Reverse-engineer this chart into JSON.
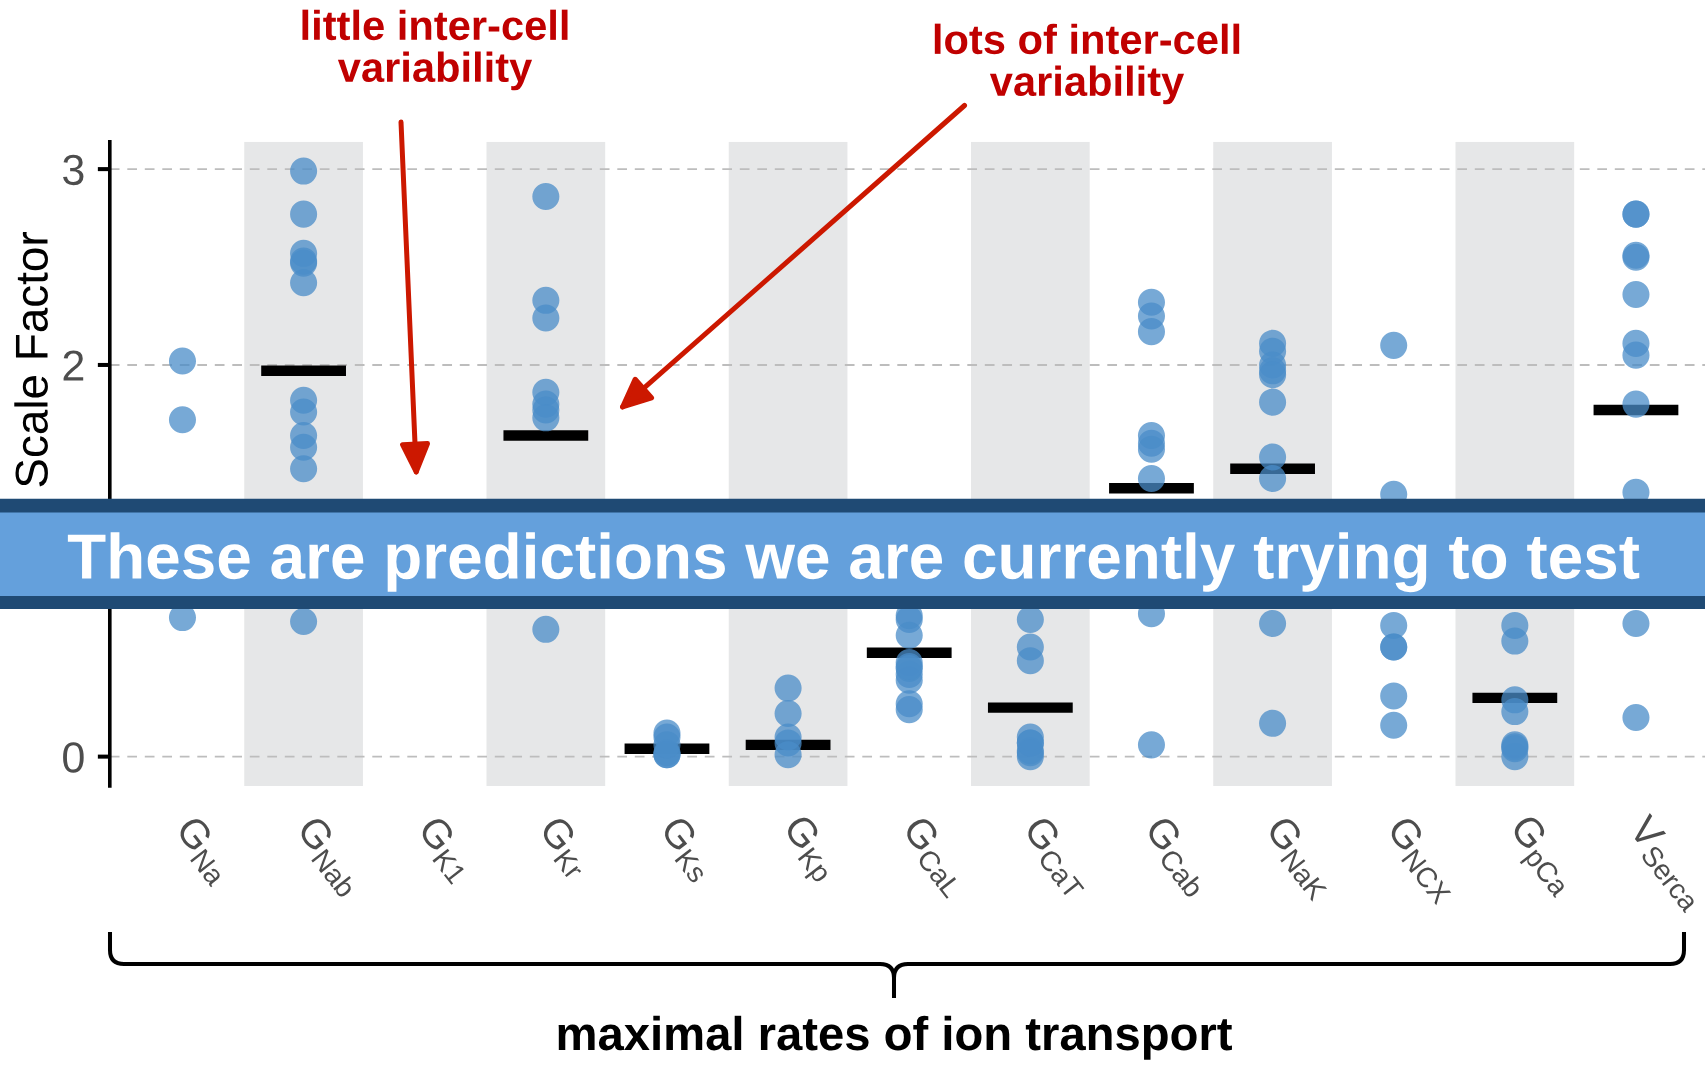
{
  "chart_data": {
    "type": "scatter",
    "xlabel": "maximal rates of ion transport",
    "ylabel": "Scale Factor",
    "categories": [
      "G$_{Na}$",
      "G$_{Nab}$",
      "G$_{K1}$",
      "G$_{Kr}$",
      "G$_{Ks}$",
      "G$_{Kp}$",
      "G$_{CaL}$",
      "G$_{CaT}$",
      "G$_{Cab}$",
      "G$_{NaK}$",
      "G$_{NCX}$",
      "G$_{pCa}$",
      "V$_{Serca}$"
    ],
    "ylim": [
      -0.15,
      3.14
    ],
    "yticks": [
      0,
      2,
      3
    ],
    "grid": "y",
    "series": [
      {
        "type": "box",
        "color": "#000000",
        "boxes": [
          null,
          {
            "low": 1.97,
            "q1": 1.97,
            "median": 1.97,
            "q3": 1.97,
            "high": 1.97
          },
          null,
          {
            "low": 1.64,
            "q1": 1.64,
            "median": 1.64,
            "q3": 1.64,
            "high": 1.64
          },
          {
            "low": 0.04,
            "q1": 0.04,
            "median": 0.04,
            "q3": 0.04,
            "high": 0.04
          },
          {
            "low": 0.06,
            "q1": 0.06,
            "median": 0.06,
            "q3": 0.06,
            "high": 0.06
          },
          {
            "low": 0.53,
            "q1": 0.53,
            "median": 0.53,
            "q3": 0.53,
            "high": 0.53
          },
          {
            "low": 0.25,
            "q1": 0.25,
            "median": 0.25,
            "q3": 0.25,
            "high": 0.25
          },
          {
            "low": 1.37,
            "q1": 1.37,
            "median": 1.37,
            "q3": 1.37,
            "high": 1.37
          },
          {
            "low": 1.47,
            "q1": 1.47,
            "median": 1.47,
            "q3": 1.47,
            "high": 1.47
          },
          null,
          {
            "low": 0.3,
            "q1": 0.3,
            "median": 0.3,
            "q3": 0.3,
            "high": 0.3
          },
          {
            "low": 1.77,
            "q1": 1.77,
            "median": 1.77,
            "q3": 1.77,
            "high": 1.77
          }
        ]
      },
      {
        "marker": "circle",
        "color": "#4a8cc8",
        "x": [
          "G$_{Na}$",
          "G$_{Na}$",
          "G$_{Na}$",
          "G$_{Nab}$",
          "G$_{Nab}$",
          "G$_{Nab}$",
          "G$_{Nab}$",
          "G$_{Nab}$",
          "G$_{Nab}$",
          "G$_{Nab}$",
          "G$_{Nab}$",
          "G$_{Nab}$",
          "G$_{Nab}$",
          "G$_{Nab}$",
          "G$_{Nab}$",
          "G$_{Kr}$",
          "G$_{Kr}$",
          "G$_{Kr}$",
          "G$_{Kr}$",
          "G$_{Kr}$",
          "G$_{Kr}$",
          "G$_{Kr}$",
          "G$_{Kr}$",
          "G$_{Ks}$",
          "G$_{Ks}$",
          "G$_{Ks}$",
          "G$_{Ks}$",
          "G$_{Ks}$",
          "G$_{Ks}$",
          "G$_{Kp}$",
          "G$_{Kp}$",
          "G$_{Kp}$",
          "G$_{Kp}$",
          "G$_{Kp}$",
          "G$_{CaL}$",
          "G$_{CaL}$",
          "G$_{CaL}$",
          "G$_{CaL}$",
          "G$_{CaL}$",
          "G$_{CaL}$",
          "G$_{CaL}$",
          "G$_{CaL}$",
          "G$_{CaL}$",
          "G$_{CaL}$",
          "G$_{CaT}$",
          "G$_{CaT}$",
          "G$_{CaT}$",
          "G$_{CaT}$",
          "G$_{CaT}$",
          "G$_{CaT}$",
          "G$_{CaT}$",
          "G$_{CaT}$",
          "G$_{CaT}$",
          "G$_{Cab}$",
          "G$_{Cab}$",
          "G$_{Cab}$",
          "G$_{Cab}$",
          "G$_{Cab}$",
          "G$_{Cab}$",
          "G$_{Cab}$",
          "G$_{Cab}$",
          "G$_{Cab}$",
          "G$_{NaK}$",
          "G$_{NaK}$",
          "G$_{NaK}$",
          "G$_{NaK}$",
          "G$_{NaK}$",
          "G$_{NaK}$",
          "G$_{NaK}$",
          "G$_{NaK}$",
          "G$_{NaK}$",
          "G$_{NaK}$",
          "G$_{NCX}$",
          "G$_{NCX}$",
          "G$_{NCX}$",
          "G$_{NCX}$",
          "G$_{NCX}$",
          "G$_{NCX}$",
          "G$_{NCX}$",
          "G$_{pCa}$",
          "G$_{pCa}$",
          "G$_{pCa}$",
          "G$_{pCa}$",
          "G$_{pCa}$",
          "G$_{pCa}$",
          "G$_{pCa}$",
          "G$_{pCa}$",
          "V$_{Serca}$",
          "V$_{Serca}$",
          "V$_{Serca}$",
          "V$_{Serca}$",
          "V$_{Serca}$",
          "V$_{Serca}$",
          "V$_{Serca}$",
          "V$_{Serca}$",
          "V$_{Serca}$",
          "V$_{Serca}$",
          "V$_{Serca}$"
        ],
        "values": [
          2.02,
          1.72,
          0.71,
          2.99,
          2.77,
          2.52,
          2.57,
          2.53,
          2.42,
          1.82,
          1.76,
          1.64,
          1.58,
          1.47,
          0.69,
          2.86,
          2.33,
          2.24,
          1.86,
          1.8,
          1.77,
          1.73,
          0.65,
          0.01,
          0.12,
          0.1,
          0.02,
          0.01,
          0.06,
          0.35,
          0.22,
          0.1,
          0.07,
          0.01,
          0.72,
          0.7,
          0.62,
          0.48,
          0.45,
          0.42,
          0.39,
          0.46,
          0.27,
          0.24,
          0.7,
          0.56,
          0.49,
          0.03,
          0.0,
          0.07,
          0.1,
          0.02,
          0.07,
          2.32,
          2.25,
          2.17,
          1.6,
          1.57,
          1.64,
          1.42,
          0.73,
          0.06,
          2.11,
          2.07,
          2.0,
          1.97,
          1.95,
          1.81,
          1.53,
          1.42,
          0.68,
          0.17,
          2.1,
          1.34,
          0.67,
          0.56,
          0.56,
          0.31,
          0.16,
          0.67,
          0.59,
          0.29,
          0.23,
          0.06,
          0.0,
          0.05,
          0.04,
          2.77,
          2.77,
          2.55,
          2.56,
          2.36,
          2.11,
          2.05,
          1.8,
          1.35,
          0.68,
          0.2
        ]
      }
    ],
    "bands": [
      {
        "axis": "x",
        "from": "G$_{Nab}$",
        "to": "G$_{Nab}$",
        "color": "#e6e7e8"
      },
      {
        "axis": "x",
        "from": "G$_{Kr}$",
        "to": "G$_{Kr}$",
        "color": "#e6e7e8"
      },
      {
        "axis": "x",
        "from": "G$_{Kp}$",
        "to": "G$_{Kp}$",
        "color": "#e6e7e8"
      },
      {
        "axis": "x",
        "from": "G$_{CaT}$",
        "to": "G$_{CaT}$",
        "color": "#e6e7e8"
      },
      {
        "axis": "x",
        "from": "G$_{NaK}$",
        "to": "G$_{NaK}$",
        "color": "#e6e7e8"
      },
      {
        "axis": "x",
        "from": "G$_{pCa}$",
        "to": "G$_{pCa}$",
        "color": "#e6e7e8"
      }
    ],
    "annotations": [
      "little inter-cell\nvariability",
      "lots of inter-cell\nvariability",
      "These are predictions we are currently trying to test"
    ]
  }
}
